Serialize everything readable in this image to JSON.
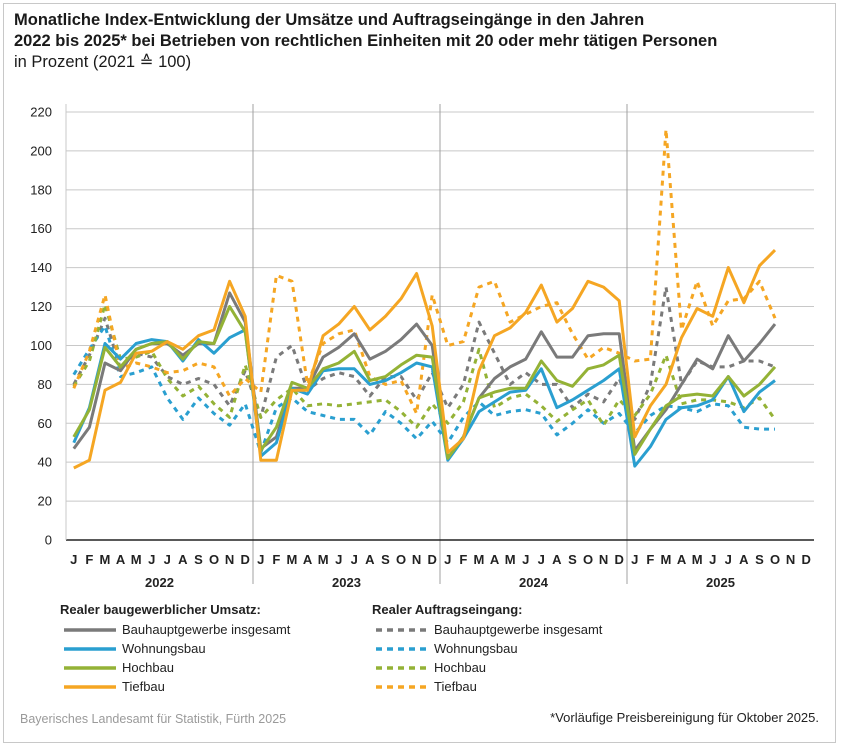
{
  "title": {
    "line1": "Monatliche Index-Entwicklung der Umsätze und Auftragseingänge in den Jahren",
    "line2": "2022 bis 2025* bei Betrieben von rechtlichen Einheiten mit 20 oder mehr tätigen Personen",
    "line3": "in Prozent (2021 ≙ 100)"
  },
  "legend": {
    "umsatz_head": "Realer baugewerblicher Umsatz:",
    "auftrag_head": "Realer Auftragseingang:",
    "items": [
      "Bauhauptgewerbe insgesamt",
      "Wohnungsbau",
      "Hochbau",
      "Tiefbau"
    ]
  },
  "source": "Bayerisches Landesamt für Statistik, Fürth 2025",
  "footnote": "*Vorläufige Preisbereinigung für Oktober 2025.",
  "colors": {
    "bauhaupt": "#7a7a7a",
    "wohnungsbau": "#2a9fd0",
    "hochbau": "#94b236",
    "tiefbau": "#f5a623",
    "grid": "#c8c8c8",
    "axis": "#222222"
  },
  "chart_data": {
    "type": "line",
    "years": [
      "2022",
      "2023",
      "2024",
      "2025"
    ],
    "month_labels": [
      "J",
      "F",
      "M",
      "A",
      "M",
      "J",
      "J",
      "A",
      "S",
      "O",
      "N",
      "D"
    ],
    "yticks": [
      0,
      20,
      40,
      60,
      80,
      100,
      120,
      140,
      160,
      180,
      200,
      220
    ],
    "ylim": [
      0,
      220
    ],
    "grid": true,
    "series": [
      {
        "name": "Bauhauptgewerbe insgesamt",
        "group": "Realer baugewerblicher Umsatz",
        "style": "solid",
        "color_key": "bauhaupt",
        "values": [
          47,
          58,
          91,
          87,
          98,
          101,
          101,
          95,
          101,
          101,
          127,
          112,
          47,
          53,
          78,
          78,
          94,
          99,
          106,
          93,
          97,
          103,
          111,
          100,
          42,
          53,
          73,
          83,
          89,
          93,
          107,
          94,
          94,
          105,
          106,
          106,
          46,
          57,
          67,
          80,
          93,
          88,
          105,
          92,
          101,
          111
        ]
      },
      {
        "name": "Wohnungsbau",
        "group": "Realer baugewerblicher Umsatz",
        "style": "solid",
        "color_key": "wohnungsbau",
        "values": [
          50,
          68,
          101,
          93,
          101,
          103,
          102,
          92,
          103,
          96,
          104,
          108,
          43,
          50,
          78,
          75,
          87,
          88,
          88,
          80,
          82,
          86,
          91,
          89,
          41,
          52,
          66,
          71,
          76,
          77,
          88,
          68,
          72,
          77,
          82,
          88,
          38,
          48,
          62,
          68,
          69,
          72,
          84,
          66,
          76,
          82
        ]
      },
      {
        "name": "Hochbau",
        "group": "Realer baugewerblicher Umsatz",
        "style": "solid",
        "color_key": "hochbau",
        "values": [
          53,
          67,
          99,
          89,
          98,
          101,
          102,
          93,
          102,
          101,
          120,
          107,
          46,
          58,
          81,
          78,
          88,
          91,
          97,
          82,
          84,
          90,
          95,
          94,
          42,
          53,
          73,
          76,
          78,
          78,
          92,
          82,
          79,
          88,
          90,
          95,
          44,
          57,
          69,
          74,
          75,
          74,
          84,
          74,
          80,
          89
        ]
      },
      {
        "name": "Tiefbau",
        "group": "Realer baugewerblicher Umsatz",
        "style": "solid",
        "color_key": "tiefbau",
        "values": [
          37,
          41,
          77,
          81,
          96,
          97,
          102,
          98,
          105,
          108,
          133,
          115,
          41,
          41,
          77,
          77,
          105,
          111,
          120,
          108,
          115,
          124,
          137,
          110,
          45,
          52,
          87,
          105,
          109,
          117,
          131,
          112,
          119,
          133,
          130,
          123,
          53,
          69,
          80,
          104,
          119,
          115,
          140,
          122,
          141,
          149
        ]
      },
      {
        "name": "Bauhauptgewerbe insgesamt",
        "group": "Realer Auftragseingang",
        "style": "dashed",
        "color_key": "bauhaupt",
        "values": [
          80,
          95,
          114,
          88,
          96,
          94,
          84,
          80,
          83,
          80,
          69,
          87,
          63,
          94,
          100,
          77,
          83,
          86,
          84,
          74,
          84,
          84,
          72,
          86,
          68,
          80,
          112,
          96,
          80,
          86,
          80,
          80,
          68,
          75,
          71,
          83,
          62,
          80,
          130,
          80,
          92,
          89,
          89,
          92,
          92,
          89
        ]
      },
      {
        "name": "Wohnungsbau",
        "group": "Realer Auftragseingang",
        "style": "dashed",
        "color_key": "wohnungsbau",
        "values": [
          85,
          98,
          110,
          84,
          86,
          89,
          73,
          62,
          73,
          65,
          59,
          70,
          45,
          68,
          73,
          66,
          64,
          62,
          62,
          54,
          66,
          60,
          52,
          61,
          50,
          63,
          71,
          64,
          66,
          67,
          65,
          54,
          60,
          67,
          60,
          65,
          55,
          64,
          69,
          68,
          66,
          70,
          69,
          58,
          57,
          57
        ]
      },
      {
        "name": "Hochbau",
        "group": "Realer Auftragseingang",
        "style": "dashed",
        "color_key": "hochbau",
        "values": [
          79,
          92,
          121,
          93,
          94,
          97,
          83,
          74,
          79,
          70,
          63,
          90,
          63,
          72,
          78,
          69,
          70,
          69,
          70,
          71,
          72,
          66,
          58,
          70,
          60,
          71,
          98,
          68,
          73,
          75,
          69,
          61,
          67,
          72,
          59,
          72,
          64,
          75,
          95,
          70,
          72,
          72,
          71,
          68,
          73,
          62
        ]
      },
      {
        "name": "Tiefbau",
        "group": "Realer Auftragseingang",
        "style": "dashed",
        "color_key": "tiefbau",
        "values": [
          78,
          97,
          126,
          88,
          91,
          89,
          86,
          87,
          91,
          89,
          74,
          83,
          76,
          136,
          133,
          80,
          101,
          106,
          108,
          84,
          80,
          82,
          65,
          126,
          100,
          102,
          130,
          133,
          112,
          116,
          120,
          122,
          106,
          93,
          99,
          96,
          92,
          93,
          211,
          108,
          133,
          110,
          123,
          124,
          133,
          114
        ]
      }
    ]
  }
}
